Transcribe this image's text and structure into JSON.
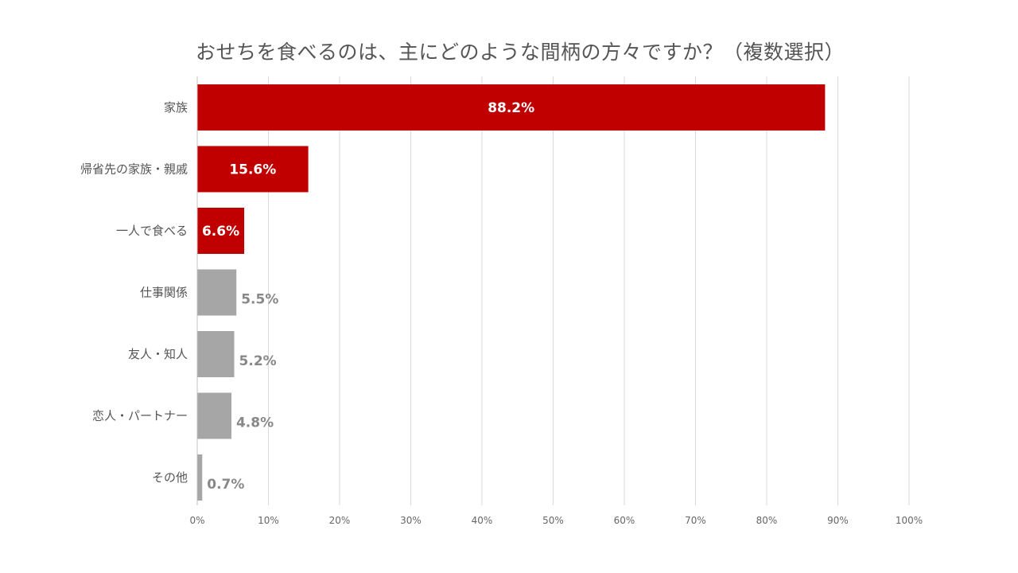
{
  "chart_data": {
    "type": "bar",
    "orientation": "horizontal",
    "title": "おせちを食べるのは、主にどのような間柄の方々ですか？（複数選択）",
    "categories": [
      "家族",
      "帰省先の家族・親戚",
      "一人で食べる",
      "仕事関係",
      "友人・知人",
      "恋人・パートナー",
      "その他"
    ],
    "values": [
      88.2,
      15.6,
      6.6,
      5.5,
      5.2,
      4.8,
      0.7
    ],
    "value_labels": [
      "88.2%",
      "15.6%",
      "6.6%",
      "5.5%",
      "5.2%",
      "4.8%",
      "0.7%"
    ],
    "highlighted": [
      true,
      true,
      true,
      false,
      false,
      false,
      false
    ],
    "xlim": [
      0,
      100
    ],
    "x_ticks": [
      "0%",
      "10%",
      "20%",
      "30%",
      "40%",
      "50%",
      "60%",
      "70%",
      "80%",
      "90%",
      "100%"
    ],
    "grid": true,
    "colors": {
      "highlight": "#c00000",
      "muted": "#a6a6a6",
      "grid": "#d9d9d9"
    }
  }
}
